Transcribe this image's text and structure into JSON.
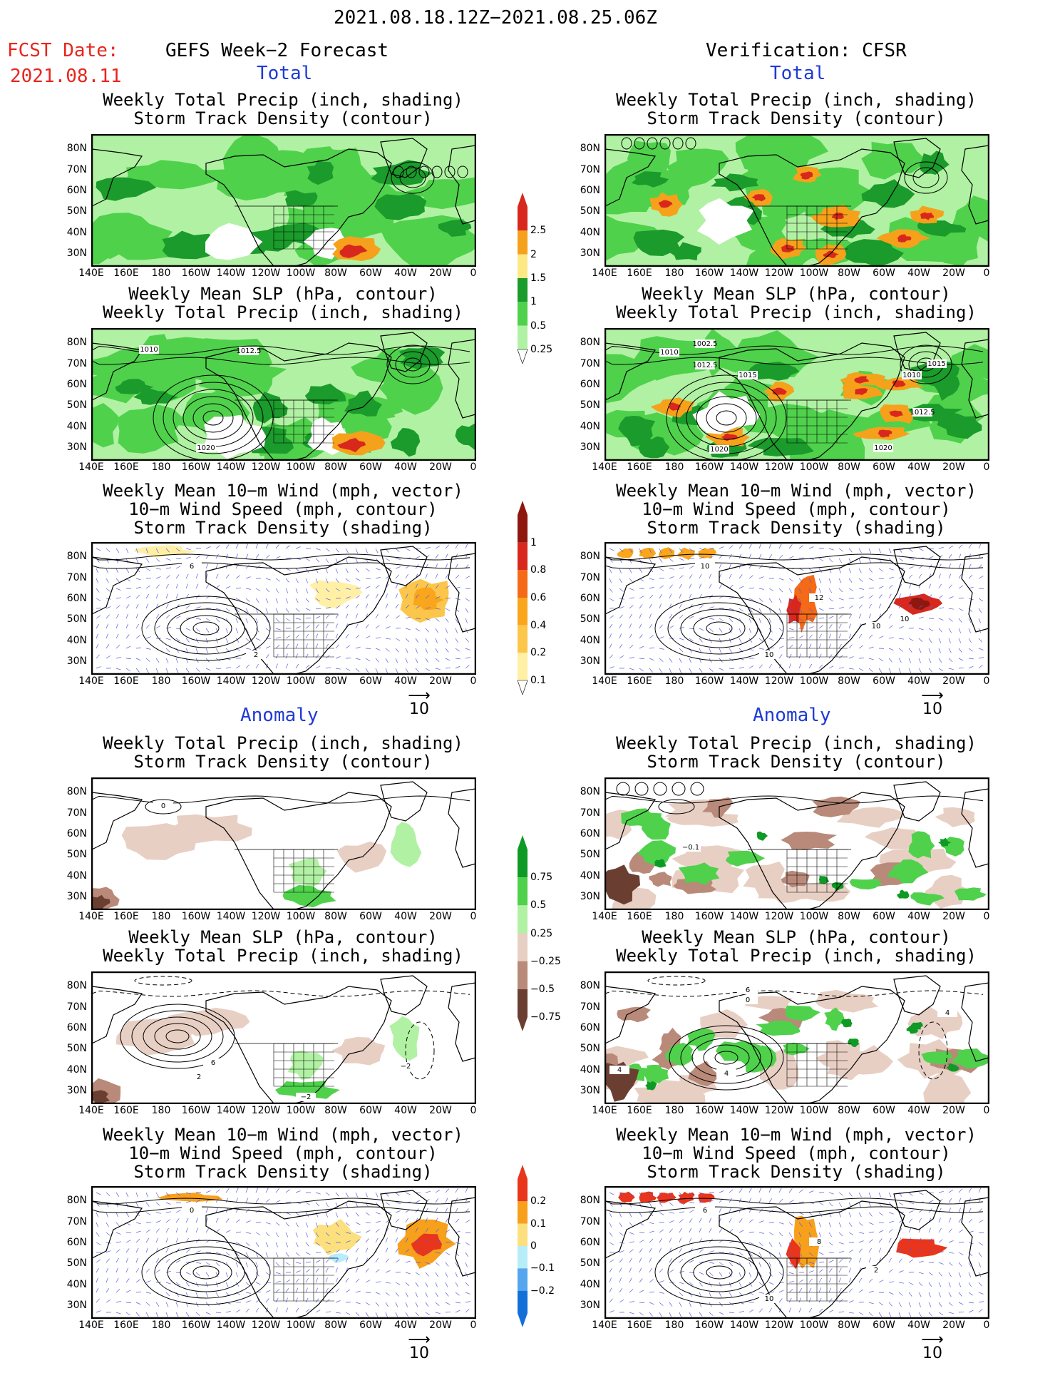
{
  "header": {
    "period": "2021.08.18.12Z−2021.08.25.06Z",
    "fcst_label": "FCST Date:",
    "fcst_date": "2021.08.11",
    "left_title": "GEFS Week−2 Forecast",
    "right_title": "Verification: CFSR"
  },
  "sections": {
    "total": "Total",
    "anomaly": "Anomaly"
  },
  "panel_titles": {
    "precip_storm": [
      "Weekly Total Precip (inch, shading)",
      "Storm Track Density (contour)"
    ],
    "slp_precip": [
      "Weekly Mean SLP (hPa, contour)",
      "Weekly Total Precip (inch, shading)"
    ],
    "wind": [
      "Weekly Mean 10−m Wind (mph, vector)",
      "10−m Wind Speed (mph, contour)",
      "Storm Track Density (shading)"
    ]
  },
  "axes": {
    "lat_labels": [
      "80N",
      "70N",
      "60N",
      "50N",
      "40N",
      "30N"
    ],
    "lon_labels": [
      "140E",
      "160E",
      "180",
      "160W",
      "140W",
      "120W",
      "100W",
      "80W",
      "60W",
      "40W",
      "20W",
      "0"
    ]
  },
  "contour_labels": {
    "fcst_slp": [
      "1010",
      "1012.5",
      "1020"
    ],
    "cfsr_slp": [
      "1002.5",
      "1010",
      "1012.5",
      "1015",
      "1015",
      "1010",
      "1012.5",
      "1020",
      "1020"
    ],
    "fcst_wind": [
      "6",
      "2"
    ],
    "cfsr_wind": [
      "10",
      "10",
      "12",
      "10",
      "10"
    ],
    "cfsr_precip_anom": [
      "−0.1"
    ],
    "fcst_slp_anom": [
      "6",
      "2",
      "−2",
      "−2"
    ],
    "cfsr_slp_anom": [
      "6",
      "0",
      "4",
      "4",
      "4"
    ],
    "fcst_wind_anom": [
      "0"
    ],
    "cfsr_wind_anom": [
      "6",
      "10",
      "8",
      "2"
    ],
    "fcst_precip_anom": [
      "0"
    ]
  },
  "vector_key": "10",
  "colorbars": {
    "precip": {
      "labels": [
        "2.5",
        "2",
        "1.5",
        "1",
        "0.5",
        "0.25"
      ],
      "colors": [
        "#d8281d",
        "#f6a11b",
        "#fde886",
        "#1a9b2b",
        "#4fd14c",
        "#b1f1a3"
      ]
    },
    "storm": {
      "labels": [
        "1",
        "0.8",
        "0.6",
        "0.4",
        "0.2",
        "0.1"
      ],
      "colors": [
        "#8e1710",
        "#d8281d",
        "#f46a16",
        "#f9a61d",
        "#fbc64a",
        "#fff0a6"
      ]
    },
    "precip_anom": {
      "labels": [
        "0.75",
        "0.5",
        "0.25",
        "−0.25",
        "−0.5",
        "−0.75"
      ],
      "colors": [
        "#0f9a25",
        "#4fd14c",
        "#b1f1a3",
        "#e8cfc4",
        "#b98a7a",
        "#6a3f31"
      ]
    },
    "storm_anom": {
      "labels": [
        "0.2",
        "0.1",
        "0",
        "−0.1",
        "−0.2"
      ],
      "colors": [
        "#e8351c",
        "#f7a01c",
        "#fce07d",
        "#b7ecf9",
        "#55a6ee",
        "#1470d9"
      ]
    }
  }
}
